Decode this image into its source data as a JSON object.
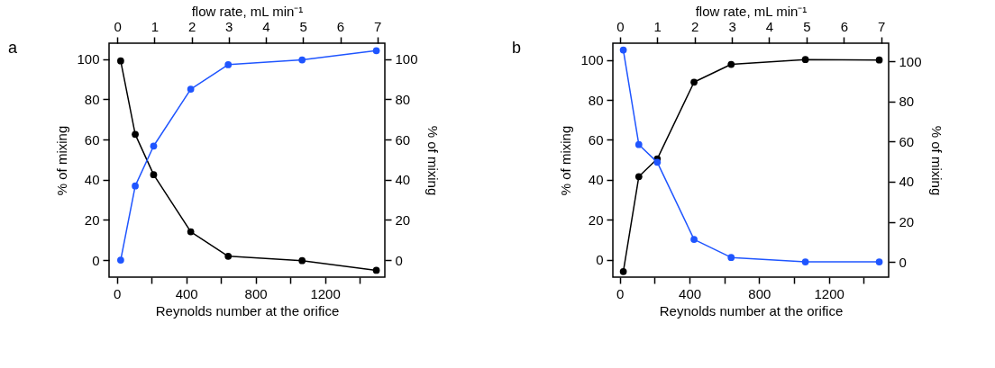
{
  "chart_data": [
    {
      "type": "line",
      "title": "a",
      "xlabel": "Reynolds number at the orifice",
      "ylabel": "% of mixing",
      "y2label": "% of mixing",
      "x2label": "flow rate, mL min⁻¹",
      "marker": "circle",
      "x": [
        22,
        106,
        212,
        426,
        642,
        1068,
        1496
      ],
      "xlim": [
        -45,
        1545
      ],
      "xticks": [
        0,
        {
          "value": 200,
          "label": null
        },
        400,
        {
          "value": 600,
          "label": null
        },
        800,
        {
          "value": 1000,
          "label": null
        },
        1200,
        {
          "value": 1400,
          "label": null
        }
      ],
      "x2lim": [
        -0.22,
        7.2
      ],
      "x2ticks": [
        0,
        1,
        2,
        3,
        4,
        5,
        6,
        7
      ],
      "ylim": [
        -8.5,
        108
      ],
      "yticks": [
        0,
        20,
        40,
        60,
        80,
        100
      ],
      "y2lim": [
        -8.5,
        108
      ],
      "y2ticks": [
        0,
        20,
        40,
        60,
        80,
        100
      ],
      "series": [
        {
          "color": "#000000",
          "values": [
            99.2,
            62.6,
            42.5,
            14.1,
            1.9,
            -0.3,
            -5.1
          ]
        },
        {
          "color": "#1f55ff",
          "axis": "y2",
          "values": [
            0,
            36.9,
            56.8,
            85.1,
            97.3,
            99.7,
            104.3
          ]
        }
      ]
    },
    {
      "type": "line",
      "title": "b",
      "xlabel": "Reynolds number at the orifice",
      "ylabel": "% of mixing",
      "y2label": "% of mixing",
      "x2label": "flow rate, mL min⁻¹",
      "marker": "circle",
      "x": [
        20,
        109,
        215,
        426,
        639,
        1065,
        1489
      ],
      "xlim": [
        -40,
        1543
      ],
      "xticks": [
        0,
        {
          "value": 200,
          "label": null
        },
        400,
        {
          "value": 600,
          "label": null
        },
        800,
        {
          "value": 1000,
          "label": null
        },
        1200,
        {
          "value": 1400,
          "label": null
        }
      ],
      "x2lim": [
        -0.19,
        7.2
      ],
      "x2ticks": [
        0,
        1,
        2,
        3,
        4,
        5,
        6,
        7
      ],
      "ylim": [
        -8.7,
        108.4
      ],
      "yticks": [
        0,
        20,
        40,
        60,
        80,
        100
      ],
      "y2lim": [
        -7.6,
        109.1
      ],
      "y2ticks": [
        0,
        20,
        40,
        60,
        80,
        100
      ],
      "series": [
        {
          "color": "#000000",
          "values": [
            -5.9,
            41.6,
            50.5,
            88.9,
            97.8,
            100.2,
            100
          ]
        },
        {
          "color": "#1f55ff",
          "axis": "y2",
          "values": [
            105.7,
            58.5,
            49.7,
            11.2,
            2.2,
            0,
            0
          ]
        }
      ]
    }
  ]
}
